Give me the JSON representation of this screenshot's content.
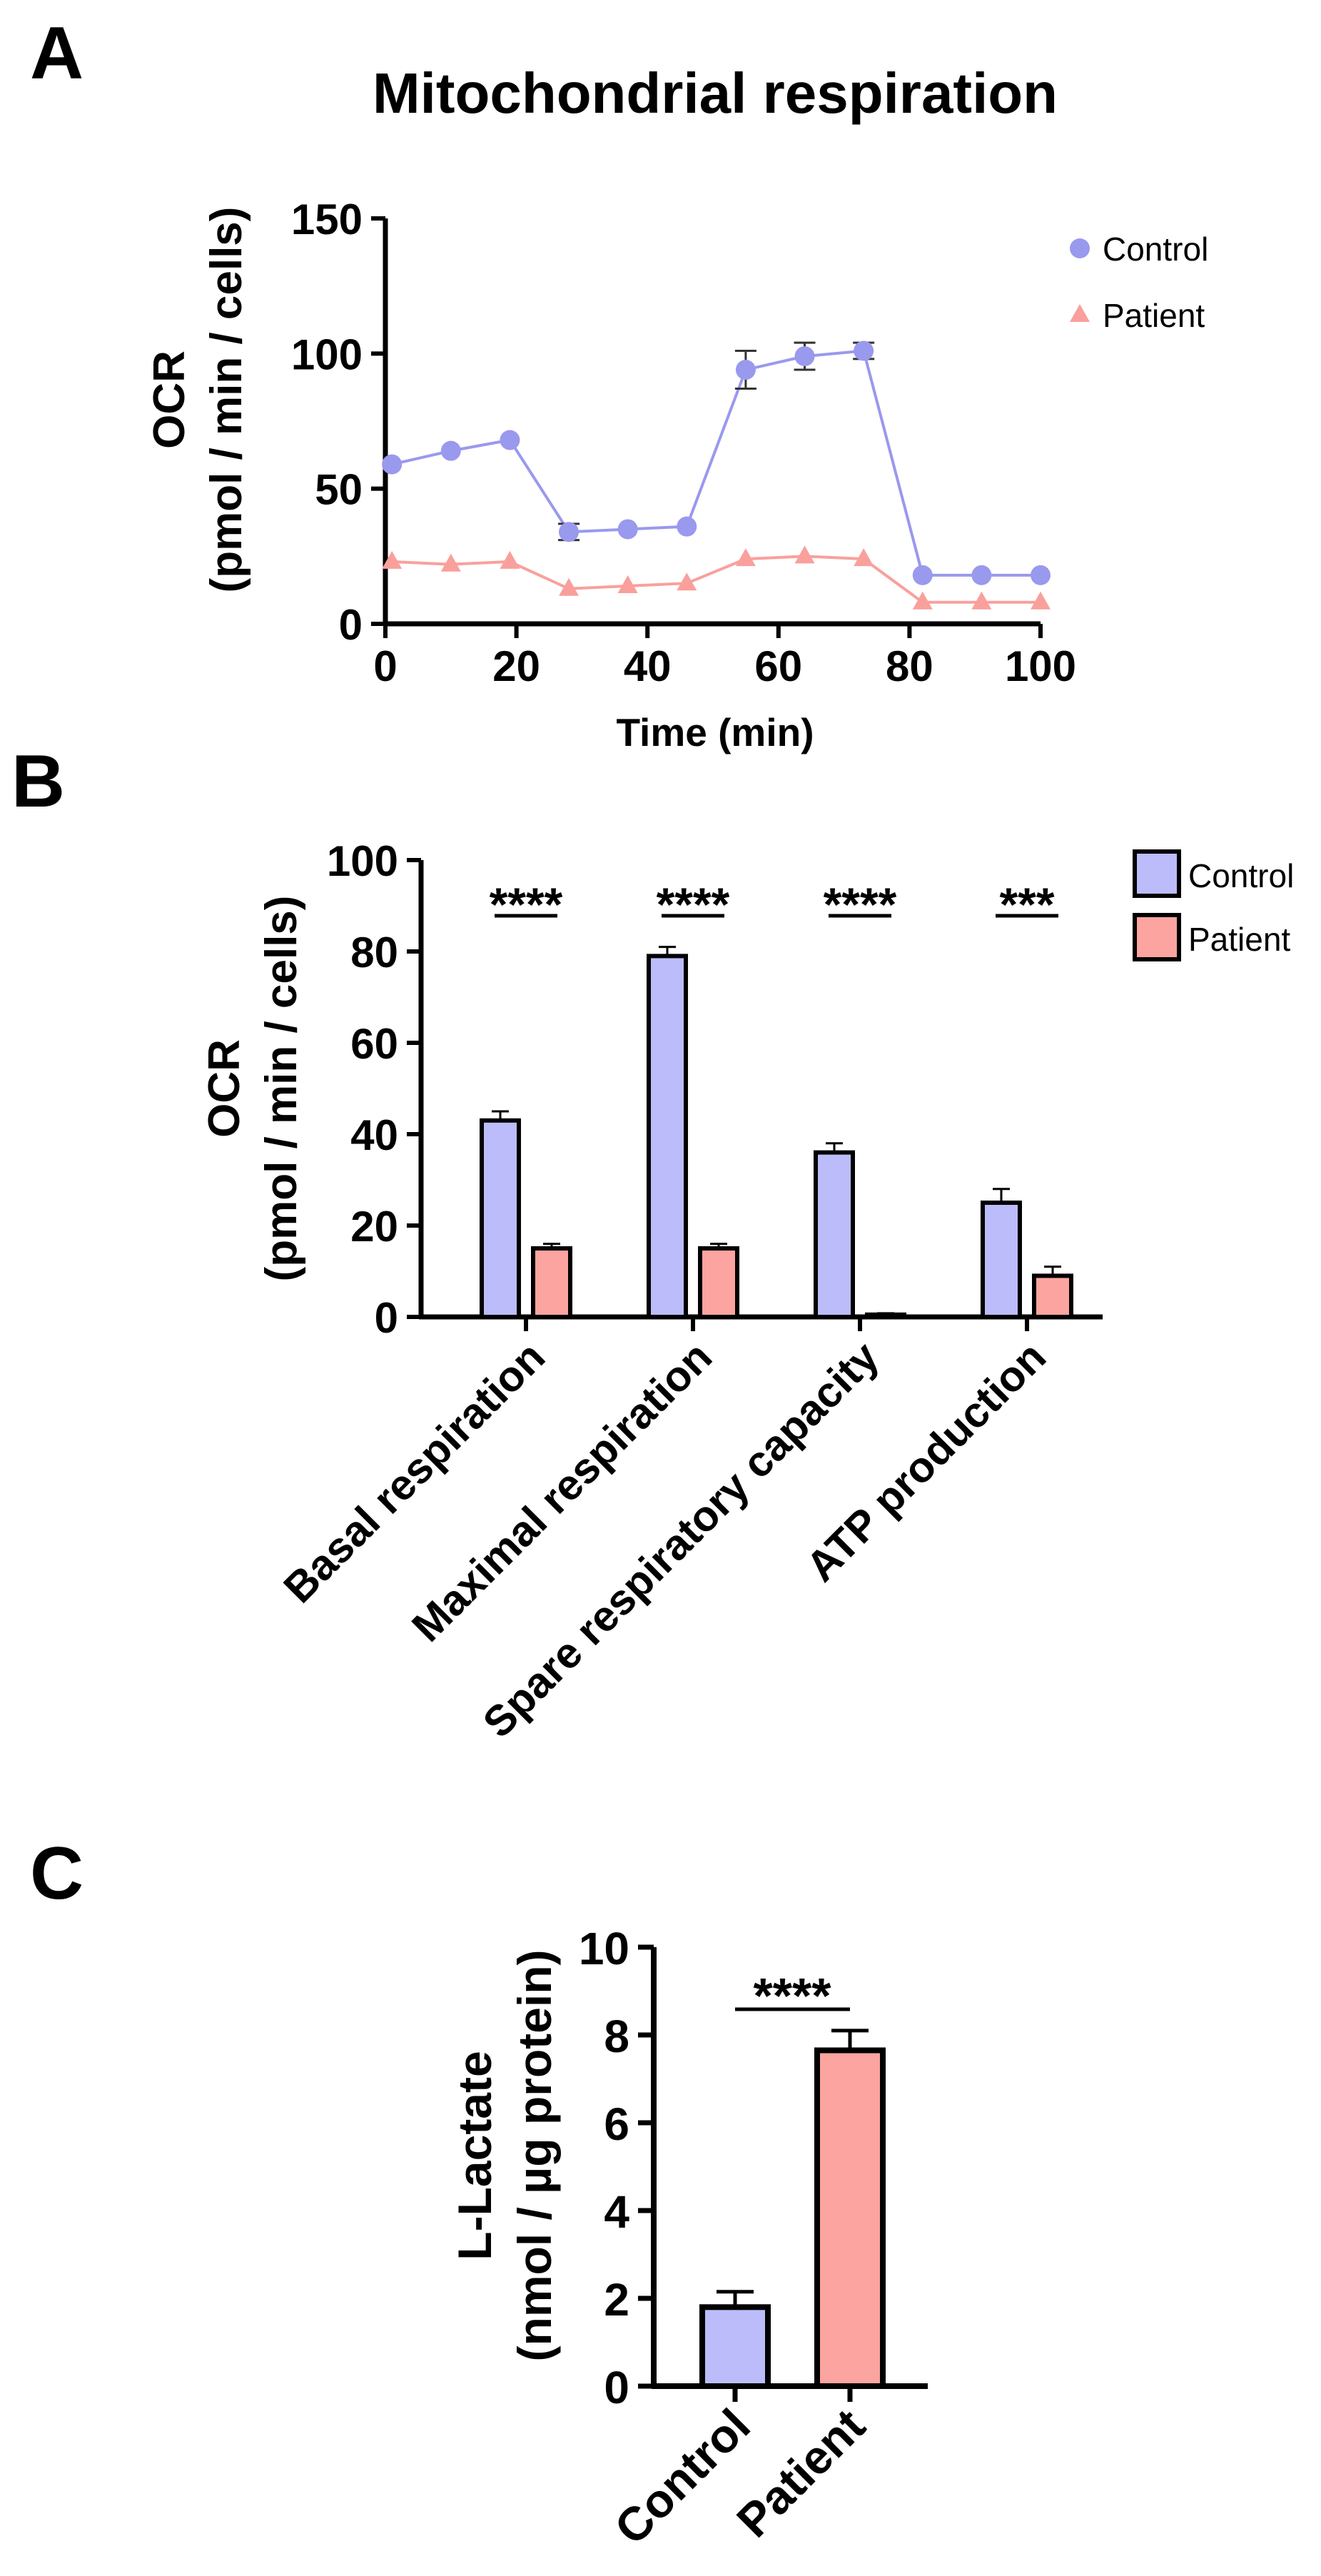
{
  "panel_labels": {
    "a": "A",
    "b": "B",
    "c": "C"
  },
  "colors": {
    "control": "#9999ee",
    "patient": "#f9a09c",
    "control_fill": "#bbbcf9",
    "patient_fill": "#fba4a0",
    "axis": "#000000"
  },
  "chart_data": [
    {
      "type": "line",
      "panel": "A",
      "title": "Mitochondrial respiration",
      "xlabel": "Time (min)",
      "ylabel": {
        "line1": "OCR",
        "line2": "(pmol / min / cells)"
      },
      "xlim": [
        0,
        100
      ],
      "ylim": [
        0,
        150
      ],
      "xticks": [
        0,
        20,
        40,
        60,
        80,
        100
      ],
      "yticks": [
        0,
        50,
        100,
        150
      ],
      "x": [
        1,
        10,
        19,
        28,
        37,
        46,
        55,
        64,
        73,
        82,
        91,
        100
      ],
      "series": [
        {
          "name": "Control",
          "marker": "circle",
          "values": [
            59,
            64,
            68,
            34,
            35,
            36,
            94,
            99,
            101,
            18,
            18,
            18
          ],
          "errors": [
            0,
            0,
            0,
            3,
            0,
            0,
            7,
            5,
            3,
            0,
            0,
            0
          ]
        },
        {
          "name": "Patient",
          "marker": "triangle",
          "values": [
            23,
            22,
            23,
            13,
            14,
            15,
            24,
            25,
            24,
            8,
            8,
            8
          ],
          "errors": [
            0,
            0,
            0,
            0,
            0,
            0,
            0,
            0,
            0,
            0,
            0,
            0
          ]
        }
      ],
      "legend": [
        "Control",
        "Patient"
      ],
      "legend_position": "top-right"
    },
    {
      "type": "bar",
      "panel": "B",
      "categories": [
        "Basal respiration",
        "Maximal respiration",
        "Spare respiratory capacity",
        "ATP production"
      ],
      "series": [
        {
          "name": "Control",
          "values": [
            43,
            79,
            36,
            25
          ],
          "errors": [
            2,
            2,
            2,
            3
          ]
        },
        {
          "name": "Patient",
          "values": [
            15,
            15,
            0.5,
            9
          ],
          "errors": [
            1,
            1,
            0.3,
            2
          ]
        }
      ],
      "significance": [
        "****",
        "****",
        "****",
        "***"
      ],
      "ylabel": {
        "line1": "OCR",
        "line2": "(pmol / min / cells)"
      },
      "ylim": [
        0,
        100
      ],
      "yticks": [
        0,
        20,
        40,
        60,
        80,
        100
      ],
      "legend": [
        "Control",
        "Patient"
      ],
      "legend_position": "top-right"
    },
    {
      "type": "bar",
      "panel": "C",
      "categories": [
        "Control",
        "Patient"
      ],
      "values": [
        1.8,
        7.65
      ],
      "errors": [
        0.35,
        0.45
      ],
      "significance": "****",
      "ylabel": {
        "line1": "L-Lactate",
        "line2": "(nmol / µg protein)"
      },
      "ylim": [
        0,
        10
      ],
      "yticks": [
        0,
        2,
        4,
        6,
        8,
        10
      ]
    }
  ]
}
